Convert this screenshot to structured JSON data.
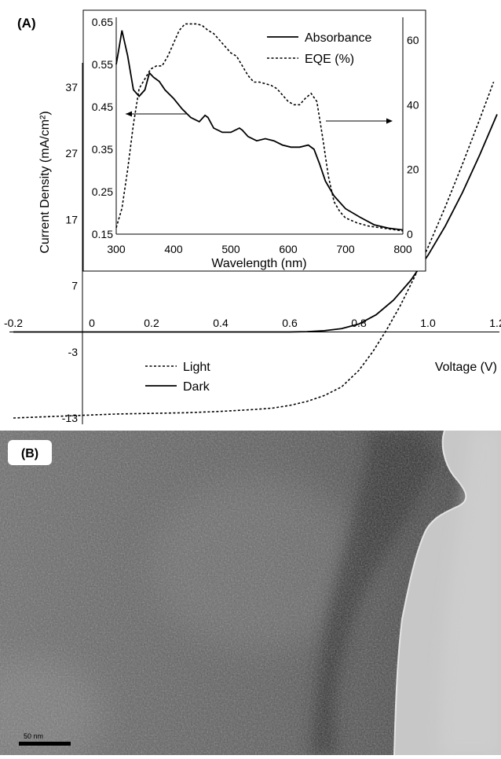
{
  "panel_a": {
    "label": "(A)",
    "legend": [
      {
        "label": "Light",
        "style": "dashed"
      },
      {
        "label": "Dark",
        "style": "solid"
      }
    ]
  },
  "panel_b": {
    "label": "(B)",
    "scale_bar": "50 nm"
  },
  "chart_data": [
    {
      "type": "line",
      "title": "",
      "xlabel": "Voltage (V)",
      "ylabel": "Current Density (mA/cm²)",
      "xlim": [
        -0.2,
        1.2
      ],
      "ylim": [
        -13,
        37
      ],
      "xticks": [
        -0.2,
        0,
        0.2,
        0.4,
        0.6,
        0.8,
        1.0,
        1.2
      ],
      "xtick_labels": [
        "-0.2",
        "0",
        "0.2",
        "0.4",
        "0.6",
        "0.8",
        "1.0",
        "1.2"
      ],
      "yticks": [
        -13,
        -3,
        7,
        17,
        27,
        37
      ],
      "ytick_labels": [
        "-13",
        "-3",
        "7",
        "17",
        "27",
        "37"
      ],
      "series": [
        {
          "name": "Light",
          "style": "dashed",
          "x": [
            -0.2,
            -0.1,
            0.0,
            0.1,
            0.2,
            0.3,
            0.4,
            0.5,
            0.55,
            0.6,
            0.65,
            0.7,
            0.75,
            0.8,
            0.84,
            0.88,
            0.92,
            0.96,
            1.0,
            1.05,
            1.1,
            1.15,
            1.19
          ],
          "y": [
            -13.0,
            -12.8,
            -12.6,
            -12.4,
            -12.3,
            -12.2,
            -12.0,
            -11.7,
            -11.5,
            -11.1,
            -10.5,
            -9.6,
            -8.3,
            -5.8,
            -3.0,
            0.3,
            4.0,
            8.2,
            12.8,
            18.9,
            25.4,
            32.2,
            37.8
          ]
        },
        {
          "name": "Dark",
          "style": "solid",
          "x": [
            -0.2,
            0.0,
            0.2,
            0.4,
            0.6,
            0.65,
            0.7,
            0.75,
            0.8,
            0.85,
            0.9,
            0.95,
            1.0,
            1.05,
            1.1,
            1.15,
            1.2
          ],
          "y": [
            0.0,
            0.0,
            0.0,
            0.0,
            0.0,
            0.05,
            0.2,
            0.5,
            1.2,
            2.6,
            4.8,
            7.8,
            11.6,
            16.0,
            21.1,
            26.8,
            32.9
          ]
        }
      ],
      "legend": "lower-left"
    },
    {
      "type": "line",
      "title": "",
      "xlabel": "Wavelength (nm)",
      "ylabel": "",
      "xlim": [
        300,
        800
      ],
      "ylim_left": [
        0.15,
        0.65
      ],
      "ylim_right": [
        0,
        68
      ],
      "xtick_labels": [
        "300",
        "400",
        "500",
        "600",
        "700",
        "800"
      ],
      "ytick_labels_left": [
        "0.15",
        "0.25",
        "0.35",
        "0.45",
        "0.55",
        "0.65"
      ],
      "ytick_labels_right": [
        "0",
        "20",
        "40",
        "60"
      ],
      "series": [
        {
          "name": "Absorbance",
          "style": "solid",
          "axis": "left",
          "x": [
            300,
            305,
            310,
            320,
            330,
            340,
            350,
            358,
            365,
            375,
            385,
            400,
            415,
            430,
            445,
            455,
            460,
            470,
            485,
            500,
            515,
            520,
            530,
            545,
            560,
            575,
            590,
            605,
            620,
            635,
            645,
            655,
            665,
            680,
            700,
            725,
            750,
            775,
            800
          ],
          "y": [
            0.55,
            0.59,
            0.63,
            0.57,
            0.49,
            0.475,
            0.49,
            0.53,
            0.52,
            0.51,
            0.49,
            0.47,
            0.445,
            0.425,
            0.415,
            0.43,
            0.425,
            0.4,
            0.39,
            0.39,
            0.4,
            0.395,
            0.38,
            0.37,
            0.375,
            0.37,
            0.36,
            0.355,
            0.355,
            0.36,
            0.35,
            0.315,
            0.275,
            0.24,
            0.21,
            0.19,
            0.172,
            0.164,
            0.16
          ]
        },
        {
          "name": "EQE (%)",
          "style": "dashed",
          "axis": "right",
          "x": [
            300,
            310,
            320,
            330,
            340,
            350,
            360,
            370,
            380,
            390,
            400,
            410,
            420,
            430,
            440,
            450,
            460,
            470,
            480,
            490,
            500,
            510,
            520,
            530,
            540,
            550,
            560,
            570,
            580,
            590,
            600,
            610,
            620,
            630,
            640,
            650,
            660,
            670,
            680,
            690,
            700,
            720,
            740,
            760,
            780,
            800
          ],
          "y": [
            2,
            8,
            20,
            34,
            45,
            48,
            51,
            52,
            52,
            55,
            59,
            63,
            65,
            65,
            65,
            64.5,
            63,
            62,
            60,
            58,
            56,
            55,
            52,
            49,
            47,
            47,
            46.5,
            46,
            45,
            43,
            41,
            40,
            40,
            42,
            43.5,
            41,
            30,
            18,
            10,
            7,
            5,
            3.5,
            2.5,
            2,
            1.5,
            1
          ]
        }
      ],
      "annotations": [
        "left-arrow to Absorbance axis",
        "right-arrow to EQE axis"
      ],
      "legend": "top-right"
    }
  ]
}
